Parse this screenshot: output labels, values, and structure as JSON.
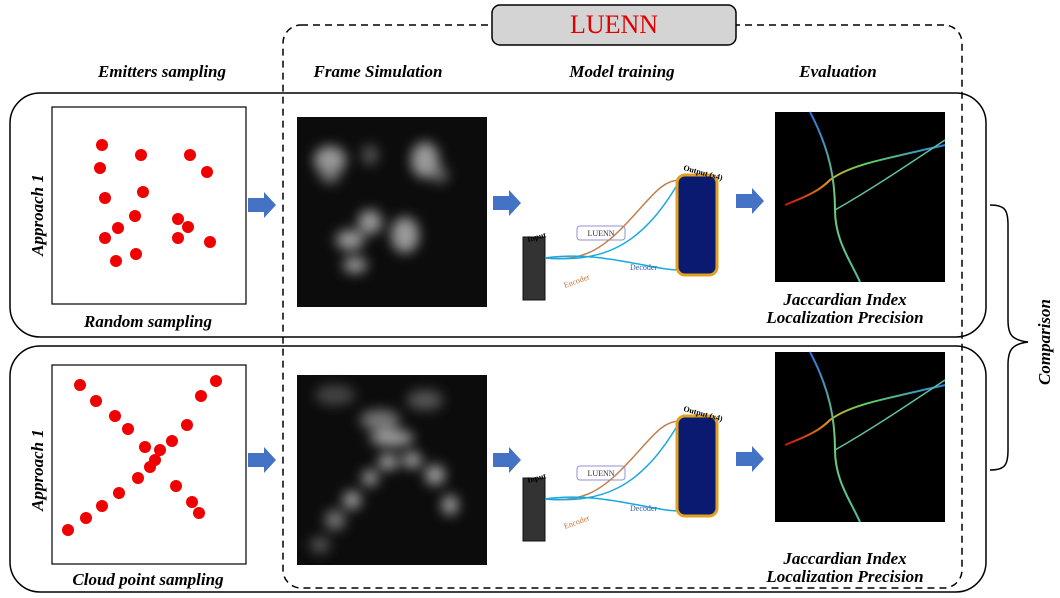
{
  "header": {
    "title": "LUENN"
  },
  "columns": [
    "Emitters sampling",
    "Frame Simulation",
    "Model training",
    "Evaluation"
  ],
  "rows": [
    {
      "label": "Approach 1",
      "sampling": "Random sampling",
      "metrics": [
        "Jaccardian Index",
        "Localization Precision"
      ],
      "network": {
        "input": "Input",
        "block": "LUENN",
        "encoder": "Encoder",
        "decoder": "Decoder",
        "output": "Output (x4)"
      }
    },
    {
      "label": "Approach 1",
      "sampling": "Cloud point sampling",
      "metrics": [
        "Jaccardian Index",
        "Localization Precision"
      ],
      "network": {
        "input": "Input",
        "block": "LUENN",
        "encoder": "Encoder",
        "decoder": "Decoder",
        "output": "Output (x4)"
      }
    }
  ],
  "comparison": "Comparison"
}
